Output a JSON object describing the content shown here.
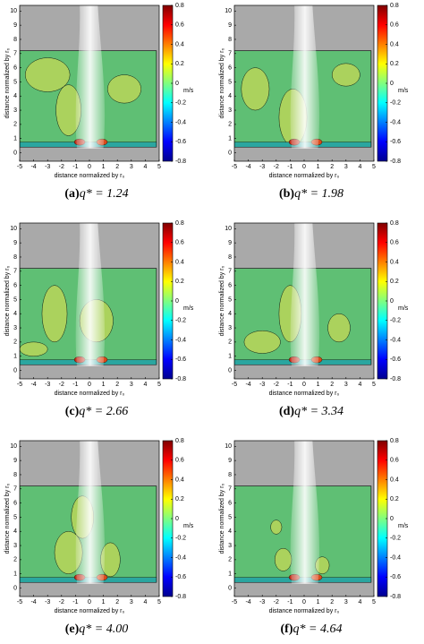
{
  "figure": {
    "xlabel": "distance normalized by r₀",
    "ylabel": "distance normalized by r₀",
    "xlim": [
      -5,
      5
    ],
    "ylim": [
      -0.6,
      10.4
    ],
    "xticks": [
      -5,
      -4,
      -3,
      -2,
      -1,
      0,
      1,
      2,
      3,
      4,
      5
    ],
    "yticks": [
      0,
      1,
      2,
      3,
      4,
      5,
      6,
      7,
      8,
      9,
      10
    ],
    "colorbar": {
      "lim": [
        -0.8,
        0.8
      ],
      "ticks": [
        0.8,
        0.6,
        0.4,
        0.2,
        0,
        -0.2,
        -0.4,
        -0.6,
        -0.8
      ],
      "unit": "m/s"
    },
    "panels": [
      {
        "label": "(a)",
        "caption": "q* = 1.24"
      },
      {
        "label": "(b)",
        "caption": "q* = 1.98"
      },
      {
        "label": "(c)",
        "caption": "q* = 2.66"
      },
      {
        "label": "(d)",
        "caption": "q* = 3.34"
      },
      {
        "label": "(e)",
        "caption": "q* = 4.00"
      },
      {
        "label": "(f)",
        "caption": "q* = 4.64"
      }
    ]
  }
}
